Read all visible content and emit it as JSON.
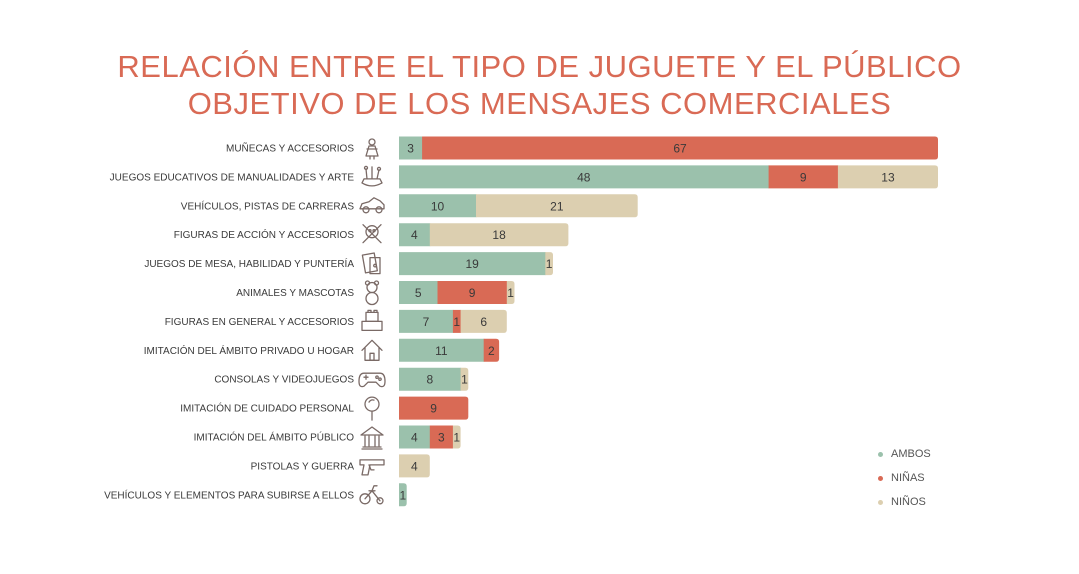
{
  "title": {
    "line1": "RELACIÓN ENTRE EL TIPO DE JUGUETE Y EL PÚBLICO",
    "line2": "OBJETIVO DE LOS MENSAJES COMERCIALES"
  },
  "legend": [
    {
      "name": "AMBOS",
      "color": "#9bc1ac"
    },
    {
      "name": "NIÑAS",
      "color": "#d96a55"
    },
    {
      "name": "NIÑOS",
      "color": "#dccfb0"
    }
  ],
  "chart_data": {
    "type": "bar",
    "orientation": "horizontal",
    "stacked": true,
    "title": "RELACIÓN ENTRE EL TIPO DE JUGUETE Y EL PÚBLICO OBJETIVO DE LOS MENSAJES COMERCIALES",
    "categories": [
      "MUÑECAS Y ACCESORIOS",
      "JUEGOS EDUCATIVOS DE MANUALIDADES Y ARTE",
      "VEHÍCULOS, PISTAS DE CARRERAS",
      "FIGURAS DE ACCIÓN Y ACCESORIOS",
      "JUEGOS DE MESA, HABILIDAD Y PUNTERÍA",
      "ANIMALES Y MASCOTAS",
      "FIGURAS EN GENERAL Y ACCESORIOS",
      "IMITACIÓN DEL ÁMBITO PRIVADO U HOGAR",
      "CONSOLAS Y VIDEOJUEGOS",
      "IMITACIÓN DE CUIDADO PERSONAL",
      "IMITACIÓN DEL ÁMBITO PÚBLICO",
      "PISTOLAS Y GUERRA",
      "VEHÍCULOS Y ELEMENTOS PARA SUBIRSE A ELLOS"
    ],
    "icons": [
      "doll-icon",
      "art-supplies-icon",
      "race-car-icon",
      "action-figure-icon",
      "board-game-icon",
      "teddy-bear-icon",
      "building-blocks-icon",
      "house-icon",
      "gamepad-icon",
      "hand-mirror-icon",
      "public-building-icon",
      "toy-gun-icon",
      "tricycle-icon"
    ],
    "series": [
      {
        "name": "AMBOS",
        "color": "#9bc1ac",
        "values": [
          3,
          48,
          10,
          4,
          19,
          5,
          7,
          11,
          8,
          0,
          4,
          0,
          1
        ]
      },
      {
        "name": "NIÑAS",
        "color": "#d96a55",
        "values": [
          67,
          9,
          0,
          0,
          0,
          9,
          1,
          2,
          0,
          9,
          3,
          0,
          0
        ]
      },
      {
        "name": "NIÑOS",
        "color": "#dccfb0",
        "values": [
          0,
          13,
          21,
          18,
          1,
          1,
          6,
          0,
          1,
          0,
          1,
          4,
          0
        ]
      }
    ],
    "xlim": [
      0,
      70
    ],
    "legend_position": "bottom-right"
  }
}
